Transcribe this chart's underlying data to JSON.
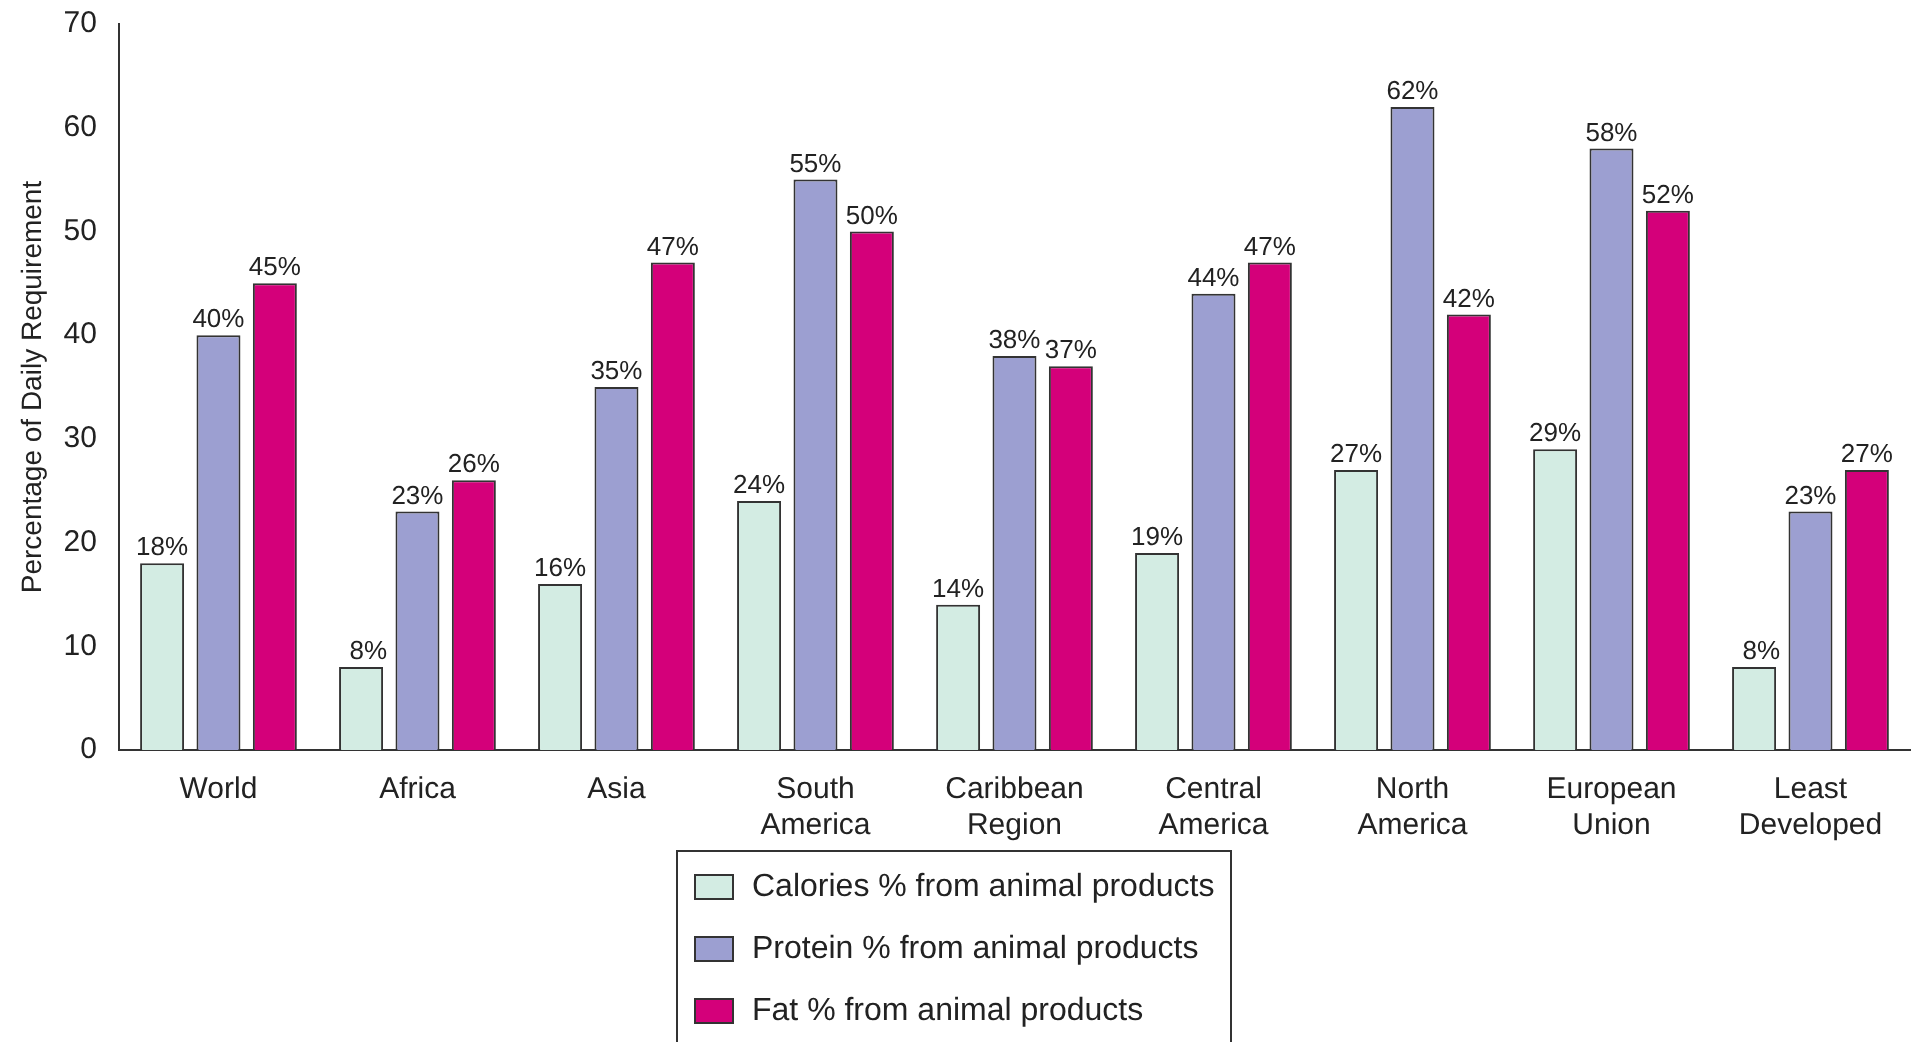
{
  "chart_data": {
    "type": "bar",
    "ylabel": "Percentage of Daily Requirement",
    "categories": [
      "World",
      "Africa",
      "Asia",
      "South America",
      "Caribbean Region",
      "Central America",
      "North America",
      "European Union",
      "Least Developed"
    ],
    "series": [
      {
        "name": "Calories % from animal products",
        "color": "#d3ece3",
        "values": [
          18,
          8,
          16,
          24,
          14,
          19,
          27,
          29,
          8
        ],
        "value_labels": [
          "18%",
          "8%",
          "16%",
          "24%",
          "14%",
          "19%",
          "27%",
          "29%",
          "8%"
        ]
      },
      {
        "name": "Protein % from animal products",
        "color": "#9c9fd1",
        "values": [
          40,
          23,
          35,
          55,
          38,
          44,
          62,
          58,
          23
        ],
        "value_labels": [
          "40%",
          "23%",
          "35%",
          "55%",
          "38%",
          "44%",
          "62%",
          "58%",
          "23%"
        ]
      },
      {
        "name": "Fat % from animal products",
        "color": "#d4007a",
        "values": [
          45,
          26,
          47,
          50,
          37,
          47,
          42,
          52,
          27
        ],
        "value_labels": [
          "45%",
          "26%",
          "47%",
          "50%",
          "37%",
          "47%",
          "42%",
          "52%",
          "27%"
        ]
      }
    ],
    "ylim": [
      0,
      70
    ],
    "yticks": [
      0,
      10,
      20,
      30,
      40,
      50,
      60,
      70
    ],
    "grid": false,
    "legend": "bottom"
  }
}
